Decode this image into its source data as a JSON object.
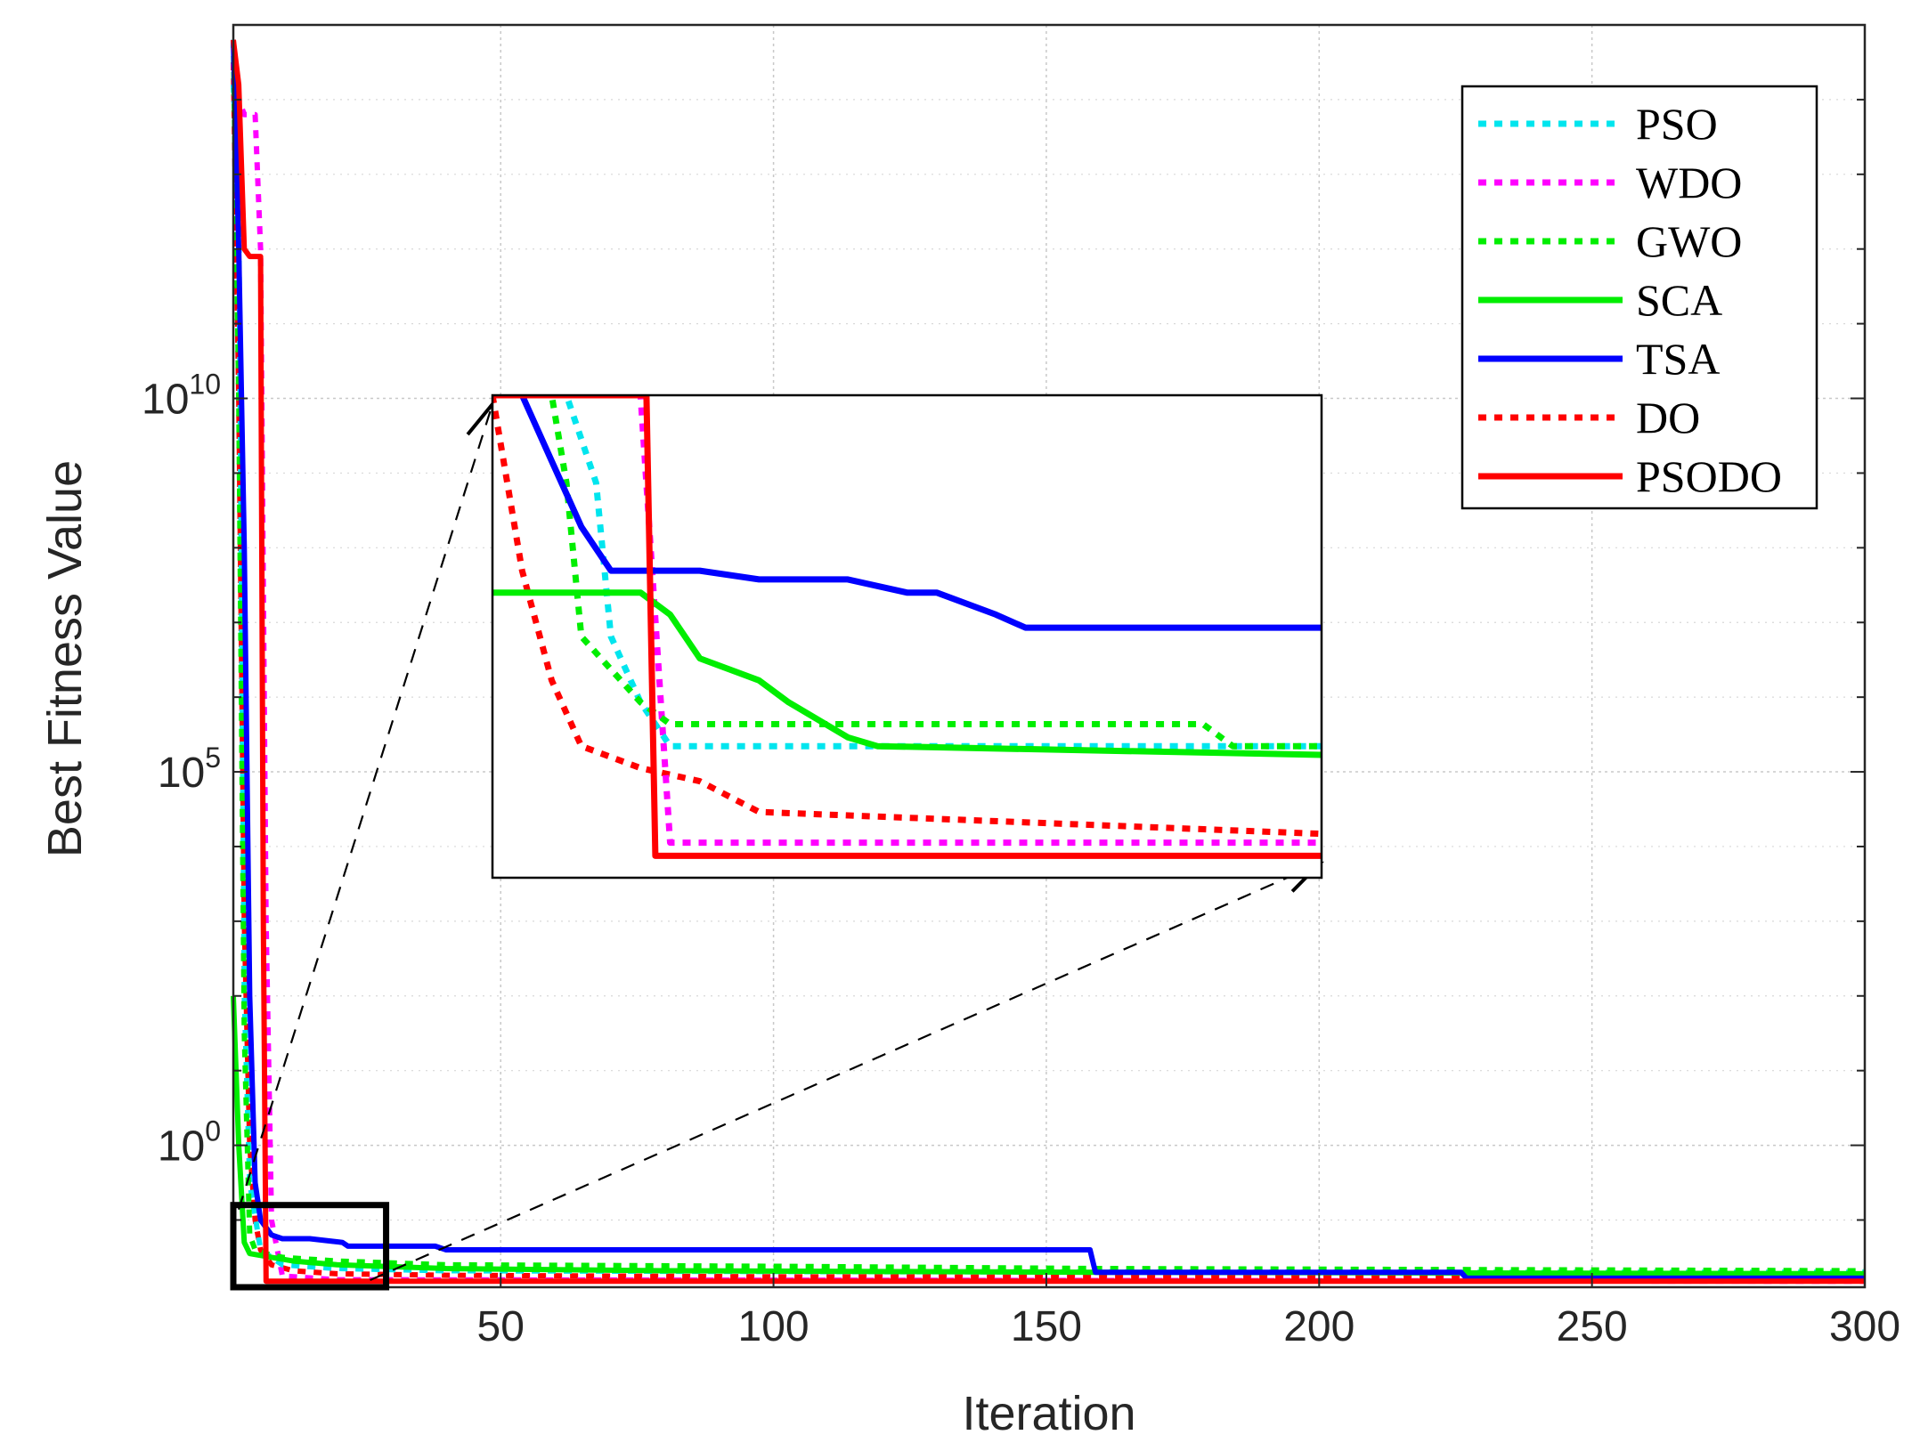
{
  "chart_data": {
    "type": "line",
    "title": "",
    "xlabel": "Iteration",
    "ylabel": "Best Fitness Value",
    "xlim": [
      1,
      300
    ],
    "ylim_log10": [
      -1.9,
      15
    ],
    "y_scale": "log",
    "grid": true,
    "x_ticks": [
      50,
      100,
      150,
      200,
      250,
      300
    ],
    "x_tick_labels": [
      "50",
      "100",
      "150",
      "200",
      "250",
      "300"
    ],
    "y_ticks_log10": [
      0,
      5,
      10
    ],
    "y_tick_labels": [
      {
        "base": "10",
        "exp": "0"
      },
      {
        "base": "10",
        "exp": "5"
      },
      {
        "base": "10",
        "exp": "10"
      }
    ],
    "legend_position": "top-right",
    "series": [
      {
        "name": "PSO",
        "color": "#00e5ee",
        "dash": "dotted",
        "x": [
          1,
          2,
          3,
          4,
          6,
          10,
          20,
          40,
          100,
          200,
          300
        ],
        "log10_y": [
          14.2,
          12.5,
          2.0,
          -0.5,
          -1.4,
          -1.6,
          -1.65,
          -1.68,
          -1.69,
          -1.7,
          -1.7
        ]
      },
      {
        "name": "WDO",
        "color": "#ff00ff",
        "dash": "dotted",
        "x": [
          1,
          2,
          3,
          4,
          5,
          6,
          7,
          8,
          10,
          20,
          300
        ],
        "log10_y": [
          14.5,
          14.0,
          13.8,
          13.8,
          13.8,
          12.0,
          3.0,
          -1.0,
          -1.75,
          -1.8,
          -1.82
        ]
      },
      {
        "name": "GWO",
        "color": "#00ee00",
        "dash": "dotted",
        "x": [
          1,
          2,
          3,
          4,
          5,
          7,
          10,
          20,
          40,
          100,
          160,
          300
        ],
        "log10_y": [
          14.8,
          10.0,
          1.5,
          -1.2,
          -1.4,
          -1.45,
          -1.5,
          -1.55,
          -1.6,
          -1.62,
          -1.65,
          -1.68
        ]
      },
      {
        "name": "SCA",
        "color": "#00ee00",
        "dash": "solid",
        "x": [
          1,
          2,
          3,
          4,
          8,
          12,
          20,
          40,
          80,
          160,
          300
        ],
        "log10_y": [
          2.0,
          0.0,
          -1.3,
          -1.45,
          -1.5,
          -1.55,
          -1.6,
          -1.65,
          -1.68,
          -1.7,
          -1.72
        ]
      },
      {
        "name": "TSA",
        "color": "#0000ff",
        "dash": "solid",
        "x": [
          1,
          2,
          3,
          4,
          5,
          6,
          8,
          10,
          15,
          21,
          22,
          38,
          40,
          158,
          159,
          226,
          227,
          300
        ],
        "log10_y": [
          14.8,
          12.0,
          8.0,
          2.0,
          -0.5,
          -1.0,
          -1.2,
          -1.25,
          -1.25,
          -1.3,
          -1.35,
          -1.35,
          -1.4,
          -1.4,
          -1.7,
          -1.7,
          -1.78,
          -1.78
        ]
      },
      {
        "name": "DO",
        "color": "#ff0000",
        "dash": "dotted",
        "x": [
          1,
          2,
          3,
          4,
          5,
          6,
          8,
          12,
          20,
          40,
          100,
          300
        ],
        "log10_y": [
          14.5,
          10.0,
          3.0,
          0.0,
          -1.0,
          -1.4,
          -1.6,
          -1.68,
          -1.72,
          -1.74,
          -1.76,
          -1.78
        ]
      },
      {
        "name": "PSODO",
        "color": "#ff0000",
        "dash": "solid",
        "x": [
          1,
          2,
          3,
          4,
          5,
          6,
          6.5,
          7,
          300
        ],
        "log10_y": [
          14.8,
          14.2,
          12.0,
          11.9,
          11.9,
          11.9,
          3.0,
          -1.82,
          -1.82
        ]
      }
    ],
    "inset": {
      "x_range": [
        1,
        29
      ],
      "log10_y_range": [
        -1.9,
        -0.8
      ],
      "series": [
        {
          "name": "PSO",
          "x": [
            1,
            3.5,
            4.5,
            5,
            6,
            7,
            29
          ],
          "log10_y": [
            -0.8,
            -0.8,
            -1.0,
            -1.35,
            -1.5,
            -1.6,
            -1.6
          ]
        },
        {
          "name": "WDO",
          "x": [
            1,
            6,
            7,
            29
          ],
          "log10_y": [
            -0.8,
            -0.8,
            -1.82,
            -1.82
          ]
        },
        {
          "name": "GWO",
          "x": [
            1,
            3,
            3.5,
            4,
            6,
            7,
            25,
            26,
            29
          ],
          "log10_y": [
            -0.8,
            -0.8,
            -1.0,
            -1.35,
            -1.5,
            -1.55,
            -1.55,
            -1.6,
            -1.6
          ]
        },
        {
          "name": "SCA",
          "x": [
            1,
            6,
            7,
            8,
            10,
            11,
            13,
            14,
            29
          ],
          "log10_y": [
            -1.25,
            -1.25,
            -1.3,
            -1.4,
            -1.45,
            -1.5,
            -1.58,
            -1.6,
            -1.62
          ]
        },
        {
          "name": "TSA",
          "x": [
            1,
            2,
            3,
            4,
            5,
            6,
            8,
            10,
            13,
            15,
            16,
            18,
            19,
            29
          ],
          "log10_y": [
            -0.8,
            -0.8,
            -0.95,
            -1.1,
            -1.2,
            -1.2,
            -1.2,
            -1.22,
            -1.22,
            -1.25,
            -1.25,
            -1.3,
            -1.33,
            -1.33
          ]
        },
        {
          "name": "DO",
          "x": [
            1,
            2,
            3,
            4,
            6,
            8,
            10,
            29
          ],
          "log10_y": [
            -0.8,
            -1.2,
            -1.45,
            -1.6,
            -1.65,
            -1.68,
            -1.75,
            -1.8
          ]
        },
        {
          "name": "PSODO",
          "x": [
            1,
            6,
            6.2,
            6.5,
            29
          ],
          "log10_y": [
            -0.8,
            -0.8,
            -0.8,
            -1.85,
            -1.85
          ]
        }
      ]
    }
  }
}
